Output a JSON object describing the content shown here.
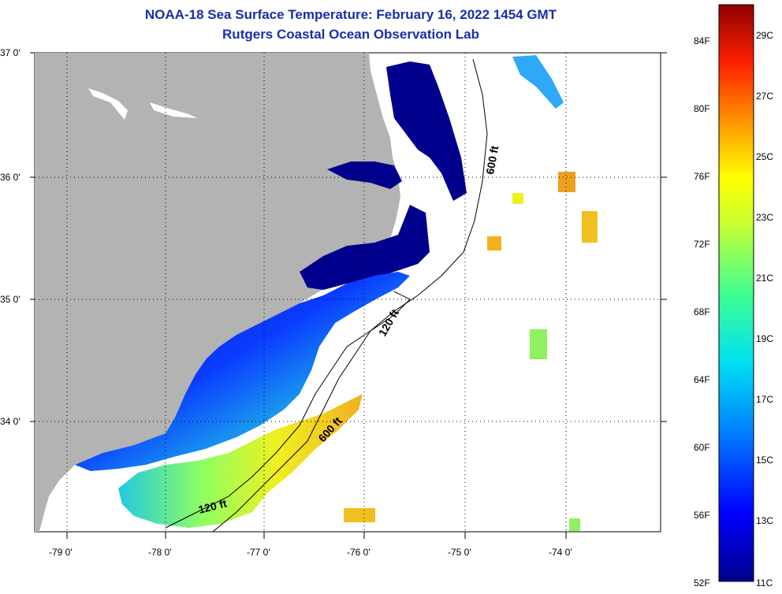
{
  "header": {
    "title": "NOAA-18 Sea Surface Temperature:  February 16, 2022 1454 GMT",
    "subtitle": "Rutgers Coastal Ocean Observation Lab"
  },
  "map": {
    "lat_labels": [
      "37 0'",
      "36 0'",
      "35 0'",
      "34 0'"
    ],
    "lon_labels": [
      "-79 0'",
      "-78 0'",
      "-77 0'",
      "-76 0'",
      "-75 0'",
      "-74 0'"
    ],
    "contours": [
      {
        "label": "600 ft"
      },
      {
        "label": "120 ft"
      },
      {
        "label": "600 ft"
      },
      {
        "label": "120 ft"
      }
    ],
    "land_color": "#b3b3b3",
    "ocean_color": "#ffffff"
  },
  "colorbar": {
    "fahrenheit_labels": [
      "84F",
      "80F",
      "76F",
      "72F",
      "68F",
      "64F",
      "60F",
      "56F",
      "52F"
    ],
    "celsius_labels": [
      "29C",
      "27C",
      "25C",
      "23C",
      "21C",
      "19C",
      "17C",
      "15C",
      "13C",
      "11C"
    ]
  },
  "colors": {
    "title": "#1a2fa8",
    "cold": "#000080",
    "cool": "#1e6cff",
    "mid": "#22d2e6",
    "warm": "#f0e020",
    "hot": "#f0a020"
  }
}
